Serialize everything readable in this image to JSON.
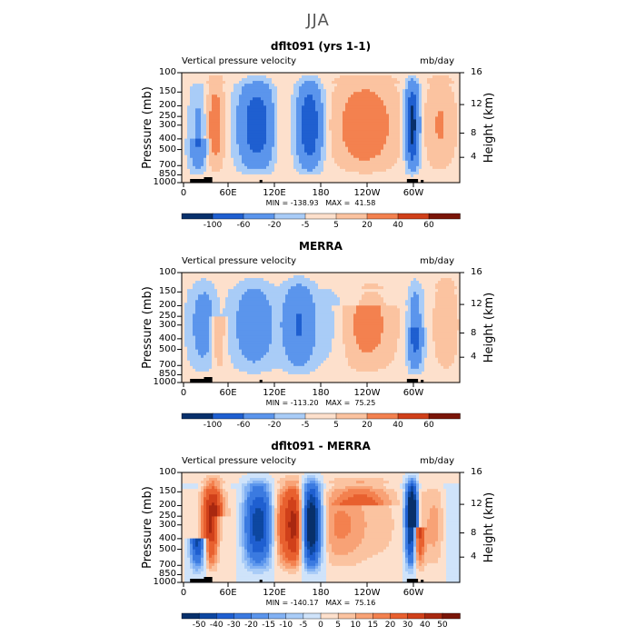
{
  "suptitle": "JJA",
  "panels": [
    {
      "title": "dflt091 (yrs 1-1)",
      "left_label": "Vertical pressure velocity",
      "right_label": "mb/day",
      "stats": "MIN = -138.93   MAX =  41.58",
      "colorbar_labels": [
        "-100",
        "-60",
        "-20",
        "-5",
        "5",
        "20",
        "40",
        "60"
      ]
    },
    {
      "title": "MERRA",
      "left_label": "Vertical pressure velocity",
      "right_label": "mb/day",
      "stats": "MIN = -113.20   MAX =  75.25",
      "colorbar_labels": [
        "-100",
        "-60",
        "-20",
        "-5",
        "5",
        "20",
        "40",
        "60"
      ]
    },
    {
      "title": "dflt091 - MERRA",
      "left_label": "Vertical pressure velocity",
      "right_label": "mb/day",
      "stats": "MIN = -140.17   MAX =  75.16",
      "colorbar_labels": [
        "-50",
        "-40",
        "-30",
        "-20",
        "-15",
        "-10",
        "-5",
        "0",
        "5",
        "10",
        "15",
        "20",
        "30",
        "40",
        "50"
      ]
    }
  ],
  "chart_data": {
    "type": "heatmap",
    "subplots": [
      {
        "title": "dflt091 (yrs 1-1)",
        "ylabel_left": "Pressure (mb)",
        "ylabel_right": "Height (km)",
        "y_ticks_left": [
          "100",
          "150",
          "200",
          "250",
          "300",
          "400",
          "500",
          "700",
          "850",
          "1000"
        ],
        "y_ticks_right": [
          "16",
          "12",
          "8",
          "4"
        ],
        "x_ticks": [
          "0",
          "60E",
          "120E",
          "180",
          "120W",
          "60W"
        ],
        "colorbar_levels": [
          "-100",
          "-60",
          "-20",
          "-5",
          "5",
          "20",
          "40",
          "60"
        ],
        "min": -138.93,
        "max": 41.58
      },
      {
        "title": "MERRA",
        "ylabel_left": "Pressure (mb)",
        "ylabel_right": "Height (km)",
        "y_ticks_left": [
          "100",
          "150",
          "200",
          "250",
          "300",
          "400",
          "500",
          "700",
          "850",
          "1000"
        ],
        "y_ticks_right": [
          "16",
          "12",
          "8",
          "4"
        ],
        "x_ticks": [
          "0",
          "60E",
          "120E",
          "180",
          "120W",
          "60W"
        ],
        "colorbar_levels": [
          "-100",
          "-60",
          "-20",
          "-5",
          "5",
          "20",
          "40",
          "60"
        ],
        "min": -113.2,
        "max": 75.25
      },
      {
        "title": "dflt091 - MERRA",
        "ylabel_left": "Pressure (mb)",
        "ylabel_right": "Height (km)",
        "y_ticks_left": [
          "100",
          "150",
          "200",
          "250",
          "300",
          "400",
          "500",
          "700",
          "850",
          "1000"
        ],
        "y_ticks_right": [
          "16",
          "12",
          "8",
          "4"
        ],
        "x_ticks": [
          "0",
          "60E",
          "120E",
          "180",
          "120W",
          "60W"
        ],
        "colorbar_levels": [
          "-50",
          "-40",
          "-30",
          "-20",
          "-15",
          "-10",
          "-5",
          "0",
          "5",
          "10",
          "15",
          "20",
          "30",
          "40",
          "50"
        ],
        "min": -140.17,
        "max": 75.16
      }
    ]
  },
  "colors": {
    "palette_16": [
      "#08306b",
      "#0d47a1",
      "#1f5fd0",
      "#3b7ae0",
      "#5b95ec",
      "#82b1f3",
      "#a9ccf7",
      "#cfe3fa",
      "#fde0cc",
      "#fbc3a0",
      "#f8a276",
      "#f3814f",
      "#e8602f",
      "#d0401a",
      "#a82810",
      "#7a1508"
    ]
  }
}
